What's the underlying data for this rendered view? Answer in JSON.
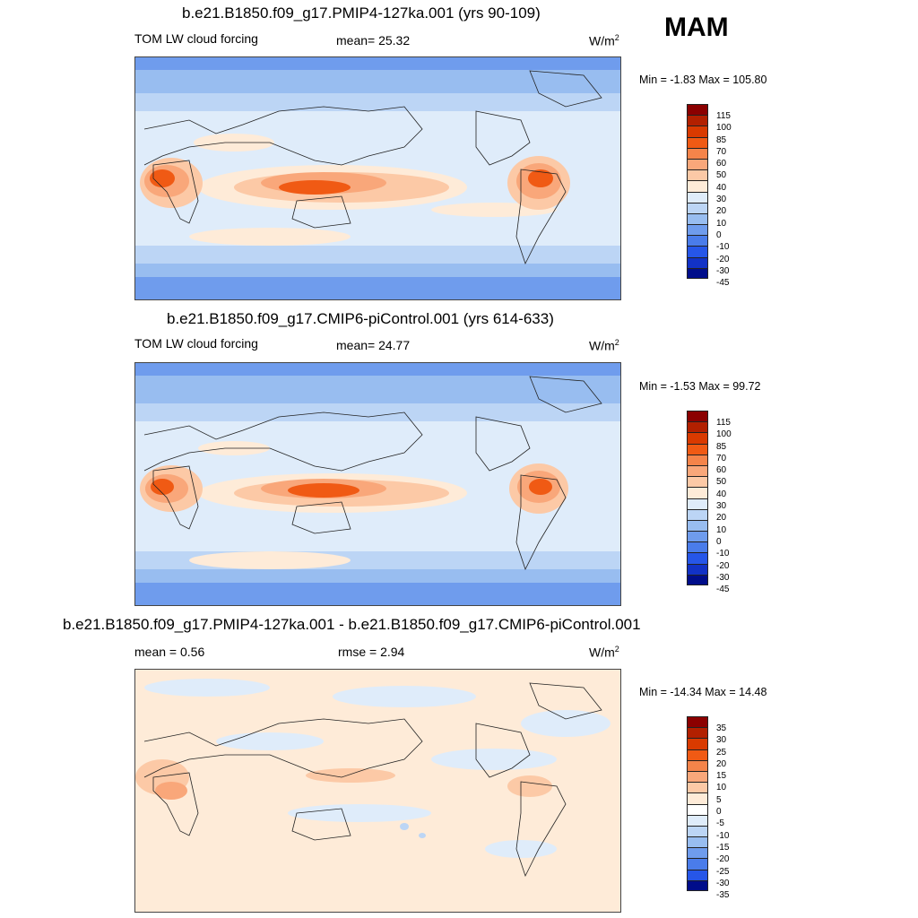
{
  "season": "MAM",
  "units_base": "W/m",
  "units_exp": "2",
  "panels": [
    {
      "title": "b.e21.B1850.f09_g17.PMIP4-127ka.001 (yrs 90-109)",
      "variable": "TOM LW cloud forcing",
      "stat": "mean=  25.32",
      "minmax": "Min =  -1.83 Max = 105.80"
    },
    {
      "title": "b.e21.B1850.f09_g17.CMIP6-piControl.001 (yrs 614-633)",
      "variable": "TOM LW cloud forcing",
      "stat": "mean=  24.77",
      "minmax": "Min =  -1.53 Max =  99.72"
    },
    {
      "title": "b.e21.B1850.f09_g17.PMIP4-127ka.001 - b.e21.B1850.f09_g17.CMIP6-piControl.001",
      "stat_left": "mean =   0.56",
      "stat_mid": "rmse =   2.94",
      "minmax": "Min = -14.34 Max =  14.48"
    }
  ],
  "colorbars": {
    "abs": {
      "labels": [
        "115",
        "100",
        "85",
        "70",
        "60",
        "50",
        "40",
        "30",
        "20",
        "10",
        "0",
        "-10",
        "-20",
        "-30",
        "-45"
      ],
      "colors": [
        "#8b0000",
        "#b22000",
        "#d93a00",
        "#f05a14",
        "#f5844a",
        "#f9a77a",
        "#fcc9a6",
        "#feebd8",
        "#dfecfa",
        "#bcd5f5",
        "#98bdf0",
        "#6f9ced",
        "#4a7cea",
        "#2656e8",
        "#1232c6",
        "#000d8a"
      ]
    },
    "diff": {
      "labels": [
        "35",
        "30",
        "25",
        "20",
        "15",
        "10",
        "5",
        "0",
        "-5",
        "-10",
        "-15",
        "-20",
        "-25",
        "-30",
        "-35"
      ],
      "colors": [
        "#8b0000",
        "#b22000",
        "#d93a00",
        "#f05a14",
        "#f5844a",
        "#f9a77a",
        "#fcc9a6",
        "#feebd8",
        "#ffffff",
        "#dfecfa",
        "#bcd5f5",
        "#98bdf0",
        "#6f9ced",
        "#4a7cea",
        "#2656e8",
        "#000d8a"
      ]
    }
  }
}
